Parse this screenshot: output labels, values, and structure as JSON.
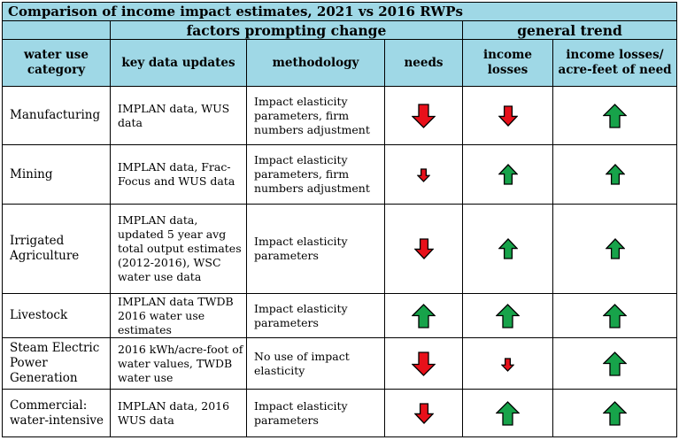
{
  "title": "Comparison of income impact estimates, 2021 vs 2016 RWPs",
  "groups": {
    "factors": "factors prompting change",
    "trend": "general trend"
  },
  "headers": {
    "category": "water use category",
    "key_data": "key data updates",
    "methodology": "methodology",
    "needs": "needs",
    "income_losses": "income losses",
    "per_acre_feet": "income losses/ acre-feet of need"
  },
  "colors": {
    "header_bg": "#9fd8e6",
    "up_arrow": "#17a34a",
    "down_arrow": "#e8101a"
  },
  "icons": {
    "up": "up-arrow-icon",
    "down": "down-arrow-icon"
  },
  "rows": [
    {
      "category": "Manufacturing",
      "key_data": "IMPLAN data, WUS data",
      "methodology": "Impact elasticity parameters, firm numbers adjustment",
      "needs": {
        "dir": "down",
        "size": "large"
      },
      "income_losses": {
        "dir": "down",
        "size": "medium"
      },
      "per_acre_feet": {
        "dir": "up",
        "size": "large"
      }
    },
    {
      "category": "Mining",
      "key_data": "IMPLAN data, Frac-Focus and WUS data",
      "methodology": "Impact elasticity parameters, firm numbers adjustment",
      "needs": {
        "dir": "down",
        "size": "small"
      },
      "income_losses": {
        "dir": "up",
        "size": "medium"
      },
      "per_acre_feet": {
        "dir": "up",
        "size": "medium"
      }
    },
    {
      "category": "Irrigated Agriculture",
      "key_data": "IMPLAN data, updated 5 year avg total output estimates (2012-2016), WSC water use data",
      "methodology": "Impact elasticity parameters",
      "needs": {
        "dir": "down",
        "size": "medium"
      },
      "income_losses": {
        "dir": "up",
        "size": "medium"
      },
      "per_acre_feet": {
        "dir": "up",
        "size": "medium"
      }
    },
    {
      "category": "Livestock",
      "key_data": "IMPLAN data TWDB 2016 water use estimates",
      "methodology": "Impact elasticity parameters",
      "needs": {
        "dir": "up",
        "size": "large"
      },
      "income_losses": {
        "dir": "up",
        "size": "large"
      },
      "per_acre_feet": {
        "dir": "up",
        "size": "large"
      }
    },
    {
      "category": "Steam Electric Power Generation",
      "key_data": "2016 kWh/acre-foot of water values, TWDB water use",
      "methodology": "No use of impact elasticity",
      "needs": {
        "dir": "down",
        "size": "large"
      },
      "income_losses": {
        "dir": "down",
        "size": "small"
      },
      "per_acre_feet": {
        "dir": "up",
        "size": "large"
      }
    },
    {
      "category": "Commercial: water-intensive",
      "key_data": "IMPLAN data, 2016 WUS data",
      "methodology": "Impact elasticity parameters",
      "needs": {
        "dir": "down",
        "size": "medium"
      },
      "income_losses": {
        "dir": "up",
        "size": "large"
      },
      "per_acre_feet": {
        "dir": "up",
        "size": "large"
      }
    }
  ]
}
